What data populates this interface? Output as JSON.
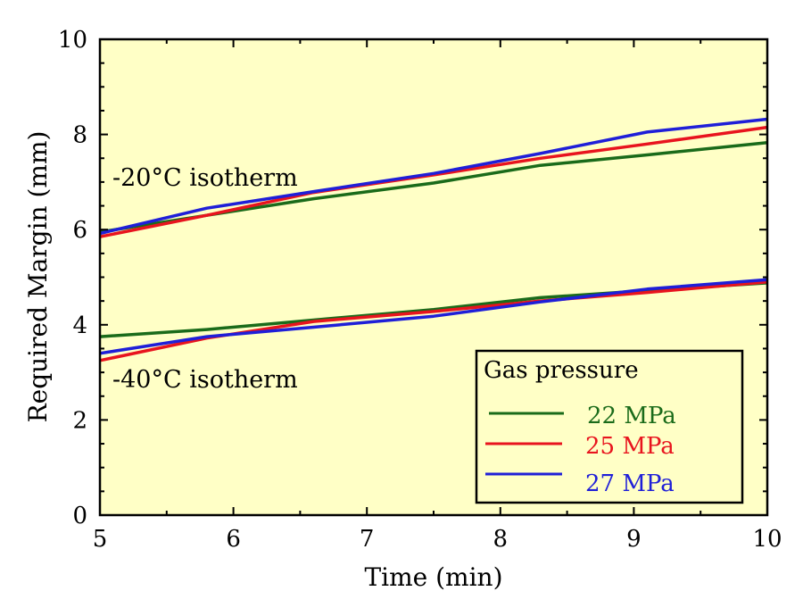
{
  "chart_data": {
    "type": "line",
    "title": "",
    "xlabel": "Time (min)",
    "ylabel": "Required Margin (mm)",
    "xlim": [
      5,
      10
    ],
    "ylim": [
      0,
      10
    ],
    "xticks": [
      "5",
      "6",
      "7",
      "8",
      "9",
      "10"
    ],
    "yticks": [
      "0",
      "2",
      "4",
      "6",
      "8",
      "10"
    ],
    "grid": false,
    "background_color": "#ffffc6",
    "legend": {
      "title": "Gas pressure",
      "placement": "bottom-right",
      "entries": [
        {
          "label": "22 MPa",
          "color": "#1a6b1a"
        },
        {
          "label": "25 MPa",
          "color": "#e8141e"
        },
        {
          "label": "27 MPa",
          "color": "#1f1fd8"
        }
      ]
    },
    "annotations": [
      {
        "text": "-20",
        "sup": "o",
        "rest": "C isotherm"
      },
      {
        "text": "-40",
        "sup": "o",
        "rest": "C isotherm"
      }
    ],
    "x": [
      5,
      5.8,
      6.6,
      7.5,
      8.3,
      9.1,
      10
    ],
    "series": [
      {
        "name": "22 MPa",
        "group": "-20°C isotherm",
        "color": "#1a6b1a",
        "values": [
          5.95,
          6.3,
          6.65,
          6.98,
          7.35,
          7.57,
          7.83
        ]
      },
      {
        "name": "25 MPa",
        "group": "-20°C isotherm",
        "color": "#e8141e",
        "values": [
          5.85,
          6.3,
          6.78,
          7.15,
          7.5,
          7.8,
          8.15
        ]
      },
      {
        "name": "27 MPa",
        "group": "-20°C isotherm",
        "color": "#1f1fd8",
        "values": [
          5.92,
          6.45,
          6.8,
          7.18,
          7.6,
          8.05,
          8.32
        ]
      },
      {
        "name": "22 MPa",
        "group": "-40°C isotherm",
        "color": "#1a6b1a",
        "values": [
          3.75,
          3.9,
          4.1,
          4.32,
          4.57,
          4.72,
          4.88
        ]
      },
      {
        "name": "25 MPa",
        "group": "-40°C isotherm",
        "color": "#e8141e",
        "values": [
          3.25,
          3.72,
          4.07,
          4.28,
          4.5,
          4.68,
          4.9
        ]
      },
      {
        "name": "27 MPa",
        "group": "-40°C isotherm",
        "color": "#1f1fd8",
        "values": [
          3.4,
          3.75,
          3.95,
          4.18,
          4.48,
          4.75,
          4.95
        ]
      }
    ]
  }
}
